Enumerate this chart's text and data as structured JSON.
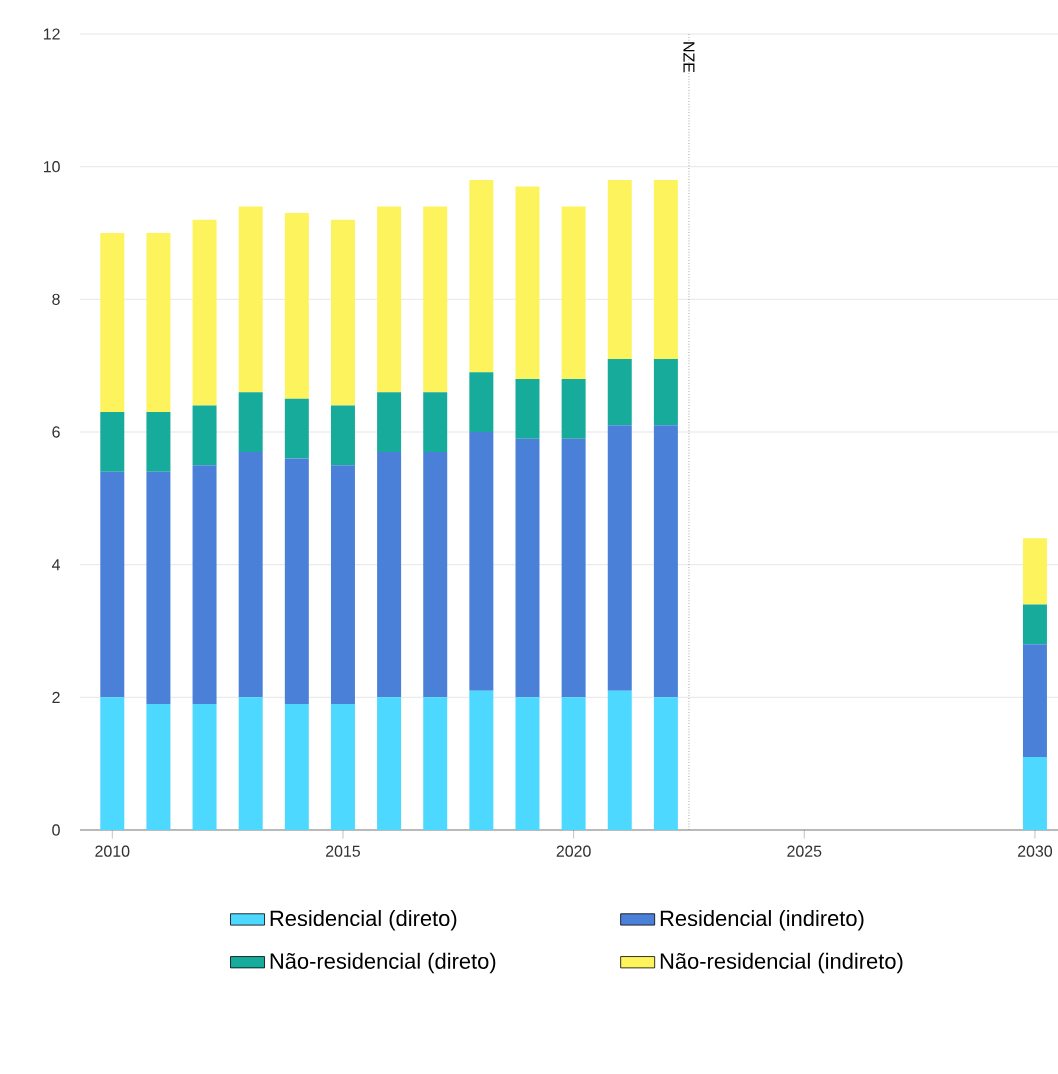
{
  "chart_data": {
    "type": "bar",
    "stacked": true,
    "x": [
      2010,
      2011,
      2012,
      2013,
      2014,
      2015,
      2016,
      2017,
      2018,
      2019,
      2020,
      2021,
      2022,
      2030
    ],
    "series": [
      {
        "name": "Residencial (direto)",
        "color": "#4dd8ff",
        "values": [
          2.0,
          1.9,
          1.9,
          2.0,
          1.9,
          1.9,
          2.0,
          2.0,
          2.1,
          2.0,
          2.0,
          2.1,
          2.0,
          1.1
        ]
      },
      {
        "name": "Residencial (indireto)",
        "color": "#4a80d8",
        "values": [
          3.4,
          3.5,
          3.6,
          3.7,
          3.7,
          3.6,
          3.7,
          3.7,
          3.9,
          3.9,
          3.9,
          4.0,
          4.1,
          1.7
        ]
      },
      {
        "name": "Não-residencial (direto)",
        "color": "#17ab9c",
        "values": [
          0.9,
          0.9,
          0.9,
          0.9,
          0.9,
          0.9,
          0.9,
          0.9,
          0.9,
          0.9,
          0.9,
          1.0,
          1.0,
          0.6
        ]
      },
      {
        "name": "Não-residencial (indireto)",
        "color": "#fdf35c",
        "values": [
          2.7,
          2.7,
          2.8,
          2.8,
          2.8,
          2.8,
          2.8,
          2.8,
          2.9,
          2.9,
          2.6,
          2.7,
          2.7,
          1.0
        ]
      }
    ],
    "xlim": [
      2009.3,
      2030.5
    ],
    "xticks": [
      2010,
      2015,
      2020,
      2025,
      2030
    ],
    "ylim": [
      0,
      12
    ],
    "yticks": [
      0,
      2,
      4,
      6,
      8,
      10,
      12
    ],
    "ref_lines": [
      {
        "axis": "x",
        "value": 2022.5,
        "label": "NZE",
        "line_style": "dotted"
      }
    ],
    "grid": "y",
    "legend": "bottom"
  }
}
